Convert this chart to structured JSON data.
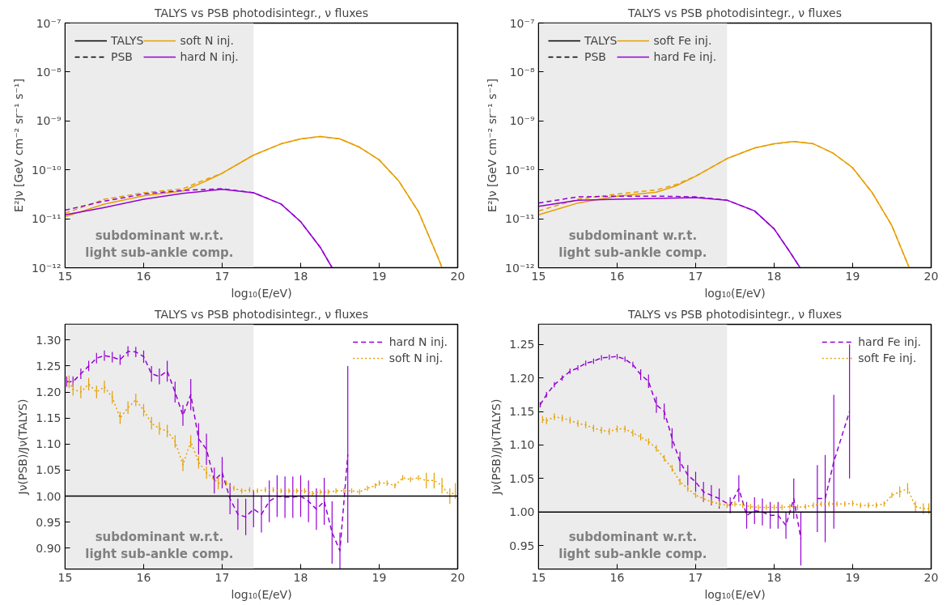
{
  "chart_data": [
    {
      "type": "line",
      "title": "TALYS vs PSB photodisintegr., ν fluxes",
      "xlabel": "log₁₀(E/eV)",
      "ylabel": "E²Jν [GeV cm⁻² sr⁻¹ s⁻¹]",
      "log": "y",
      "xlim": [
        15,
        20
      ],
      "ylim": [
        1e-12,
        1e-07
      ],
      "xticks": [
        15,
        16,
        17,
        18,
        19,
        20
      ],
      "yticks": [
        {
          "value": 1e-12,
          "label": "10⁻¹²"
        },
        {
          "value": 1e-11,
          "label": "10⁻¹¹"
        },
        {
          "value": 1e-10,
          "label": "10⁻¹⁰"
        },
        {
          "value": 1e-09,
          "label": "10⁻⁹"
        },
        {
          "value": 1e-08,
          "label": "10⁻⁸"
        },
        {
          "value": 1e-07,
          "label": "10⁻⁷"
        }
      ],
      "legend": "top left",
      "annotations": [
        "TALYS",
        "PSB"
      ],
      "bands": [
        {
          "axis": "x",
          "from": 15,
          "to": 17.4,
          "label": "subdominant w.r.t.\nlight sub-ankle comp.",
          "color": "#ececec"
        }
      ],
      "series": [
        {
          "name": "soft N inj.",
          "color": "#e69f00",
          "line_style": "solid",
          "x": [
            15,
            15.5,
            16,
            16.5,
            16.75,
            17,
            17.4,
            17.75,
            18,
            18.25,
            18.5,
            18.75,
            19,
            19.25,
            19.5,
            19.75,
            19.8
          ],
          "values": [
            1.1e-11,
            2e-11,
            2.95e-11,
            3.7e-11,
            5.5e-11,
            8.5e-11,
            2e-10,
            3.4e-10,
            4.3e-10,
            4.8e-10,
            4.3e-10,
            2.9e-10,
            1.6e-10,
            5.9e-11,
            1.4e-11,
            1.6e-12,
            1e-12
          ]
        },
        {
          "color": "#e69f00",
          "line_style": "dashed",
          "x": [
            15,
            15.5,
            16,
            16.5,
            16.75,
            17,
            17.4,
            17.75,
            18,
            18.25,
            18.5,
            18.75,
            19,
            19.25,
            19.5,
            19.75,
            19.8
          ],
          "values": [
            1.3e-11,
            2.5e-11,
            3.4e-11,
            4.1e-11,
            6e-11,
            8.5e-11,
            2e-10,
            3.4e-10,
            4.3e-10,
            4.8e-10,
            4.3e-10,
            2.9e-10,
            1.6e-10,
            5.9e-11,
            1.4e-11,
            1.6e-12,
            1e-12
          ]
        },
        {
          "name": "hard N inj.",
          "color": "#9400d3",
          "line_style": "solid",
          "x": [
            15,
            15.5,
            16,
            16.5,
            17,
            17.4,
            17.75,
            18,
            18.25,
            18.4
          ],
          "values": [
            1.2e-11,
            1.7e-11,
            2.5e-11,
            3.3e-11,
            4e-11,
            3.4e-11,
            2e-11,
            8.7e-12,
            2.6e-12,
            1e-12
          ]
        },
        {
          "color": "#9400d3",
          "line_style": "dashed",
          "x": [
            15,
            15.5,
            16,
            16.5,
            17,
            17.4,
            17.75,
            18,
            18.25,
            18.4
          ],
          "values": [
            1.5e-11,
            2.3e-11,
            3.2e-11,
            3.8e-11,
            4.1e-11,
            3.4e-11,
            2e-11,
            8.7e-12,
            2.6e-12,
            1e-12
          ]
        }
      ]
    },
    {
      "type": "line",
      "title": "TALYS vs PSB photodisintegr., ν fluxes",
      "xlabel": "log₁₀(E/eV)",
      "ylabel": "E²Jν [GeV cm⁻² sr⁻¹ s⁻¹]",
      "log": "y",
      "xlim": [
        15,
        20
      ],
      "ylim": [
        1e-12,
        1e-07
      ],
      "xticks": [
        15,
        16,
        17,
        18,
        19,
        20
      ],
      "yticks": [
        {
          "value": 1e-12,
          "label": "10⁻¹²"
        },
        {
          "value": 1e-11,
          "label": "10⁻¹¹"
        },
        {
          "value": 1e-10,
          "label": "10⁻¹⁰"
        },
        {
          "value": 1e-09,
          "label": "10⁻⁹"
        },
        {
          "value": 1e-08,
          "label": "10⁻⁸"
        },
        {
          "value": 1e-07,
          "label": "10⁻⁷"
        }
      ],
      "legend": "top left",
      "annotations": [
        "TALYS",
        "PSB"
      ],
      "bands": [
        {
          "axis": "x",
          "from": 15,
          "to": 17.4,
          "label": "subdominant w.r.t.\nlight sub-ankle comp.",
          "color": "#ececec"
        }
      ],
      "series": [
        {
          "name": "soft Fe inj.",
          "color": "#e69f00",
          "line_style": "solid",
          "x": [
            15,
            15.5,
            16,
            16.5,
            16.75,
            17,
            17.4,
            17.75,
            18,
            18.25,
            18.5,
            18.75,
            19,
            19.25,
            19.5,
            19.72
          ],
          "values": [
            1.2e-11,
            2.1e-11,
            2.9e-11,
            3.5e-11,
            4.7e-11,
            7.4e-11,
            1.7e-10,
            2.8e-10,
            3.4e-10,
            3.8e-10,
            3.4e-10,
            2.2e-10,
            1.1e-10,
            3.4e-11,
            7.2e-12,
            1e-12
          ]
        },
        {
          "color": "#e69f00",
          "line_style": "dashed",
          "x": [
            15,
            15.5,
            16,
            16.5,
            16.75,
            17,
            17.4,
            17.75,
            18,
            18.25,
            18.5,
            18.75,
            19,
            19.25,
            19.5,
            19.72
          ],
          "values": [
            1.45e-11,
            2.5e-11,
            3.2e-11,
            3.9e-11,
            5e-11,
            7.4e-11,
            1.7e-10,
            2.8e-10,
            3.4e-10,
            3.8e-10,
            3.4e-10,
            2.2e-10,
            1.1e-10,
            3.4e-11,
            7.2e-12,
            1e-12
          ]
        },
        {
          "name": "hard Fe inj.",
          "color": "#9400d3",
          "line_style": "solid",
          "x": [
            15,
            15.5,
            16,
            16.5,
            17,
            17.4,
            17.75,
            18,
            18.2,
            18.33
          ],
          "values": [
            1.8e-11,
            2.4e-11,
            2.5e-11,
            2.6e-11,
            2.7e-11,
            2.4e-11,
            1.45e-11,
            6.2e-12,
            2.1e-12,
            1e-12
          ]
        },
        {
          "color": "#9400d3",
          "line_style": "dashed",
          "x": [
            15,
            15.5,
            16,
            16.5,
            17,
            17.4,
            17.75,
            18,
            18.2,
            18.33
          ],
          "values": [
            2.1e-11,
            2.8e-11,
            2.9e-11,
            2.9e-11,
            2.8e-11,
            2.4e-11,
            1.45e-11,
            6.2e-12,
            2.1e-12,
            1e-12
          ]
        }
      ]
    },
    {
      "type": "line",
      "title": "TALYS vs PSB photodisintegr., ν fluxes",
      "xlabel": "log₁₀(E/eV)",
      "ylabel": "Jν(PSB)/Jν(TALYS)",
      "xlim": [
        15,
        20
      ],
      "ylim": [
        0.86,
        1.33
      ],
      "xticks": [
        15,
        16,
        17,
        18,
        19,
        20
      ],
      "yticks": [
        {
          "value": 0.9,
          "label": "0.90"
        },
        {
          "value": 0.95,
          "label": "0.95"
        },
        {
          "value": 1.0,
          "label": "1.00"
        },
        {
          "value": 1.05,
          "label": "1.05"
        },
        {
          "value": 1.1,
          "label": "1.10"
        },
        {
          "value": 1.15,
          "label": "1.15"
        },
        {
          "value": 1.2,
          "label": "1.20"
        },
        {
          "value": 1.25,
          "label": "1.25"
        },
        {
          "value": 1.3,
          "label": "1.30"
        }
      ],
      "legend": "top right",
      "ref_lines": [
        {
          "axis": "y",
          "value": 1.0,
          "color": "#000000"
        }
      ],
      "bands": [
        {
          "axis": "x",
          "from": 15,
          "to": 17.4,
          "label": "subdominant w.r.t.\nlight sub-ankle comp.",
          "color": "#ececec"
        }
      ],
      "series": [
        {
          "name": "hard N inj.",
          "color": "#9400d3",
          "line_style": "dashed",
          "x": [
            15.02,
            15.1,
            15.2,
            15.3,
            15.4,
            15.5,
            15.6,
            15.7,
            15.8,
            15.9,
            16.0,
            16.1,
            16.2,
            16.3,
            16.4,
            16.5,
            16.6,
            16.7,
            16.8,
            16.9,
            17.0,
            17.1,
            17.2,
            17.3,
            17.4,
            17.5,
            17.6,
            17.7,
            17.8,
            17.9,
            18.0,
            18.1,
            18.2,
            18.3,
            18.4,
            18.5,
            18.6
          ],
          "values": [
            1.22,
            1.22,
            1.235,
            1.25,
            1.265,
            1.27,
            1.267,
            1.262,
            1.278,
            1.277,
            1.268,
            1.235,
            1.23,
            1.24,
            1.2,
            1.155,
            1.195,
            1.11,
            1.09,
            1.03,
            1.045,
            0.995,
            0.965,
            0.96,
            0.975,
            0.965,
            0.99,
            1.0,
            0.998,
            0.998,
            1.0,
            0.99,
            0.975,
            0.99,
            0.93,
            0.895,
            1.08
          ],
          "errors": [
            0.01,
            0.01,
            0.01,
            0.01,
            0.01,
            0.01,
            0.01,
            0.01,
            0.01,
            0.01,
            0.012,
            0.015,
            0.015,
            0.02,
            0.02,
            0.02,
            0.03,
            0.03,
            0.03,
            0.025,
            0.03,
            0.03,
            0.03,
            0.035,
            0.035,
            0.035,
            0.04,
            0.04,
            0.04,
            0.04,
            0.04,
            0.04,
            0.04,
            0.045,
            0.06,
            0.035,
            0.17
          ]
        },
        {
          "name": "soft N inj.",
          "color": "#e69f00",
          "line_style": "dotted",
          "x": [
            15.05,
            15.1,
            15.2,
            15.3,
            15.4,
            15.5,
            15.6,
            15.7,
            15.8,
            15.9,
            16.0,
            16.1,
            16.2,
            16.3,
            16.4,
            16.5,
            16.6,
            16.7,
            16.8,
            16.95,
            17.05,
            17.15,
            17.25,
            17.35,
            17.45,
            17.55,
            17.65,
            17.75,
            17.85,
            17.95,
            18.05,
            18.15,
            18.25,
            18.35,
            18.45,
            18.55,
            18.65,
            18.75,
            18.85,
            18.95,
            19.0,
            19.1,
            19.2,
            19.3,
            19.4,
            19.5,
            19.6,
            19.7,
            19.8,
            19.9,
            19.97
          ],
          "values": [
            1.22,
            1.205,
            1.2,
            1.215,
            1.2,
            1.21,
            1.19,
            1.15,
            1.17,
            1.185,
            1.165,
            1.14,
            1.13,
            1.125,
            1.105,
            1.06,
            1.105,
            1.065,
            1.045,
            1.025,
            1.025,
            1.015,
            1.01,
            1.012,
            1.01,
            1.012,
            1.012,
            1.01,
            1.01,
            1.01,
            1.01,
            1.005,
            1.008,
            1.008,
            1.01,
            1.01,
            1.01,
            1.008,
            1.015,
            1.02,
            1.025,
            1.025,
            1.02,
            1.035,
            1.032,
            1.035,
            1.03,
            1.03,
            1.02,
            1.0,
            1.01
          ],
          "errors": [
            0.012,
            0.012,
            0.012,
            0.012,
            0.012,
            0.012,
            0.012,
            0.012,
            0.012,
            0.012,
            0.012,
            0.012,
            0.012,
            0.012,
            0.012,
            0.012,
            0.012,
            0.012,
            0.012,
            0.012,
            0.005,
            0.005,
            0.005,
            0.005,
            0.005,
            0.005,
            0.005,
            0.005,
            0.005,
            0.005,
            0.005,
            0.005,
            0.005,
            0.005,
            0.005,
            0.005,
            0.005,
            0.005,
            0.005,
            0.005,
            0.005,
            0.005,
            0.005,
            0.005,
            0.005,
            0.005,
            0.015,
            0.015,
            0.015,
            0.015,
            0.015
          ]
        }
      ]
    },
    {
      "type": "line",
      "title": "TALYS vs PSB photodisintegr., ν fluxes",
      "xlabel": "log₁₀(E/eV)",
      "ylabel": "Jν(PSB)/Jν(TALYS)",
      "xlim": [
        15,
        20
      ],
      "ylim": [
        0.915,
        1.28
      ],
      "xticks": [
        15,
        16,
        17,
        18,
        19,
        20
      ],
      "yticks": [
        {
          "value": 0.95,
          "label": "0.95"
        },
        {
          "value": 1.0,
          "label": "1.00"
        },
        {
          "value": 1.05,
          "label": "1.05"
        },
        {
          "value": 1.1,
          "label": "1.10"
        },
        {
          "value": 1.15,
          "label": "1.15"
        },
        {
          "value": 1.2,
          "label": "1.20"
        },
        {
          "value": 1.25,
          "label": "1.25"
        }
      ],
      "legend": "top right",
      "ref_lines": [
        {
          "axis": "y",
          "value": 1.0,
          "color": "#000000"
        }
      ],
      "bands": [
        {
          "axis": "x",
          "from": 15,
          "to": 17.4,
          "label": "subdominant w.r.t.\nlight sub-ankle comp.",
          "color": "#ececec"
        }
      ],
      "series": [
        {
          "name": "hard Fe inj.",
          "color": "#9400d3",
          "line_style": "dashed",
          "x": [
            15.02,
            15.1,
            15.2,
            15.3,
            15.4,
            15.5,
            15.6,
            15.7,
            15.8,
            15.9,
            16.0,
            16.1,
            16.2,
            16.3,
            16.4,
            16.5,
            16.6,
            16.7,
            16.8,
            16.9,
            17.0,
            17.1,
            17.2,
            17.3,
            17.44,
            17.55,
            17.65,
            17.75,
            17.85,
            17.95,
            18.05,
            18.15,
            18.25,
            18.34,
            18.45,
            18.55,
            18.65,
            18.76,
            18.96
          ],
          "values": [
            1.16,
            1.175,
            1.19,
            1.2,
            1.21,
            1.215,
            1.222,
            1.225,
            1.23,
            1.231,
            1.232,
            1.228,
            1.22,
            1.205,
            1.195,
            1.16,
            1.15,
            1.11,
            1.075,
            1.055,
            1.045,
            1.03,
            1.025,
            1.02,
            1.01,
            1.035,
            0.995,
            1.002,
            1.0,
            0.995,
            0.995,
            0.98,
            1.02,
            0.96,
            null,
            1.02,
            1.02,
            1.075,
            1.15
          ],
          "errors": [
            0.004,
            0.004,
            0.004,
            0.004,
            0.004,
            0.004,
            0.004,
            0.004,
            0.004,
            0.004,
            0.004,
            0.004,
            0.004,
            0.008,
            0.01,
            0.012,
            0.012,
            0.015,
            0.015,
            0.015,
            0.015,
            0.015,
            0.015,
            0.015,
            0.012,
            0.02,
            0.02,
            0.02,
            0.02,
            0.02,
            0.02,
            0.02,
            0.03,
            0.04,
            null,
            0.05,
            0.065,
            0.1,
            0.1
          ]
        },
        {
          "name": "soft Fe inj.",
          "color": "#e69f00",
          "line_style": "dotted",
          "x": [
            15.05,
            15.1,
            15.2,
            15.3,
            15.4,
            15.5,
            15.6,
            15.7,
            15.8,
            15.9,
            16.0,
            16.1,
            16.2,
            16.3,
            16.4,
            16.5,
            16.6,
            16.7,
            16.8,
            16.9,
            17.0,
            17.1,
            17.2,
            17.3,
            17.4,
            17.5,
            17.6,
            17.7,
            17.8,
            17.9,
            18.0,
            18.1,
            18.2,
            18.3,
            18.4,
            18.5,
            18.6,
            18.7,
            18.8,
            18.9,
            19.0,
            19.1,
            19.2,
            19.3,
            19.4,
            19.5,
            19.6,
            19.7,
            19.8,
            19.9,
            19.97
          ],
          "values": [
            1.138,
            1.136,
            1.142,
            1.14,
            1.137,
            1.132,
            1.13,
            1.125,
            1.122,
            1.12,
            1.124,
            1.124,
            1.118,
            1.112,
            1.105,
            1.095,
            1.08,
            1.065,
            1.045,
            1.035,
            1.025,
            1.02,
            1.015,
            1.012,
            1.01,
            1.012,
            1.01,
            1.008,
            1.007,
            1.007,
            1.007,
            1.007,
            1.008,
            1.007,
            1.008,
            1.01,
            1.012,
            1.012,
            1.012,
            1.012,
            1.013,
            1.01,
            1.01,
            1.01,
            1.012,
            1.025,
            1.03,
            1.035,
            1.008,
            1.005,
            1.005
          ],
          "errors": [
            0.005,
            0.005,
            0.005,
            0.005,
            0.005,
            0.005,
            0.005,
            0.005,
            0.005,
            0.005,
            0.005,
            0.005,
            0.005,
            0.005,
            0.005,
            0.005,
            0.005,
            0.005,
            0.005,
            0.005,
            0.004,
            0.004,
            0.004,
            0.004,
            0.004,
            0.004,
            0.004,
            0.004,
            0.004,
            0.004,
            0.004,
            0.004,
            0.004,
            0.004,
            0.004,
            0.004,
            0.004,
            0.004,
            0.004,
            0.004,
            0.004,
            0.004,
            0.004,
            0.004,
            0.004,
            0.004,
            0.008,
            0.008,
            0.008,
            0.008,
            0.008
          ]
        }
      ]
    }
  ]
}
